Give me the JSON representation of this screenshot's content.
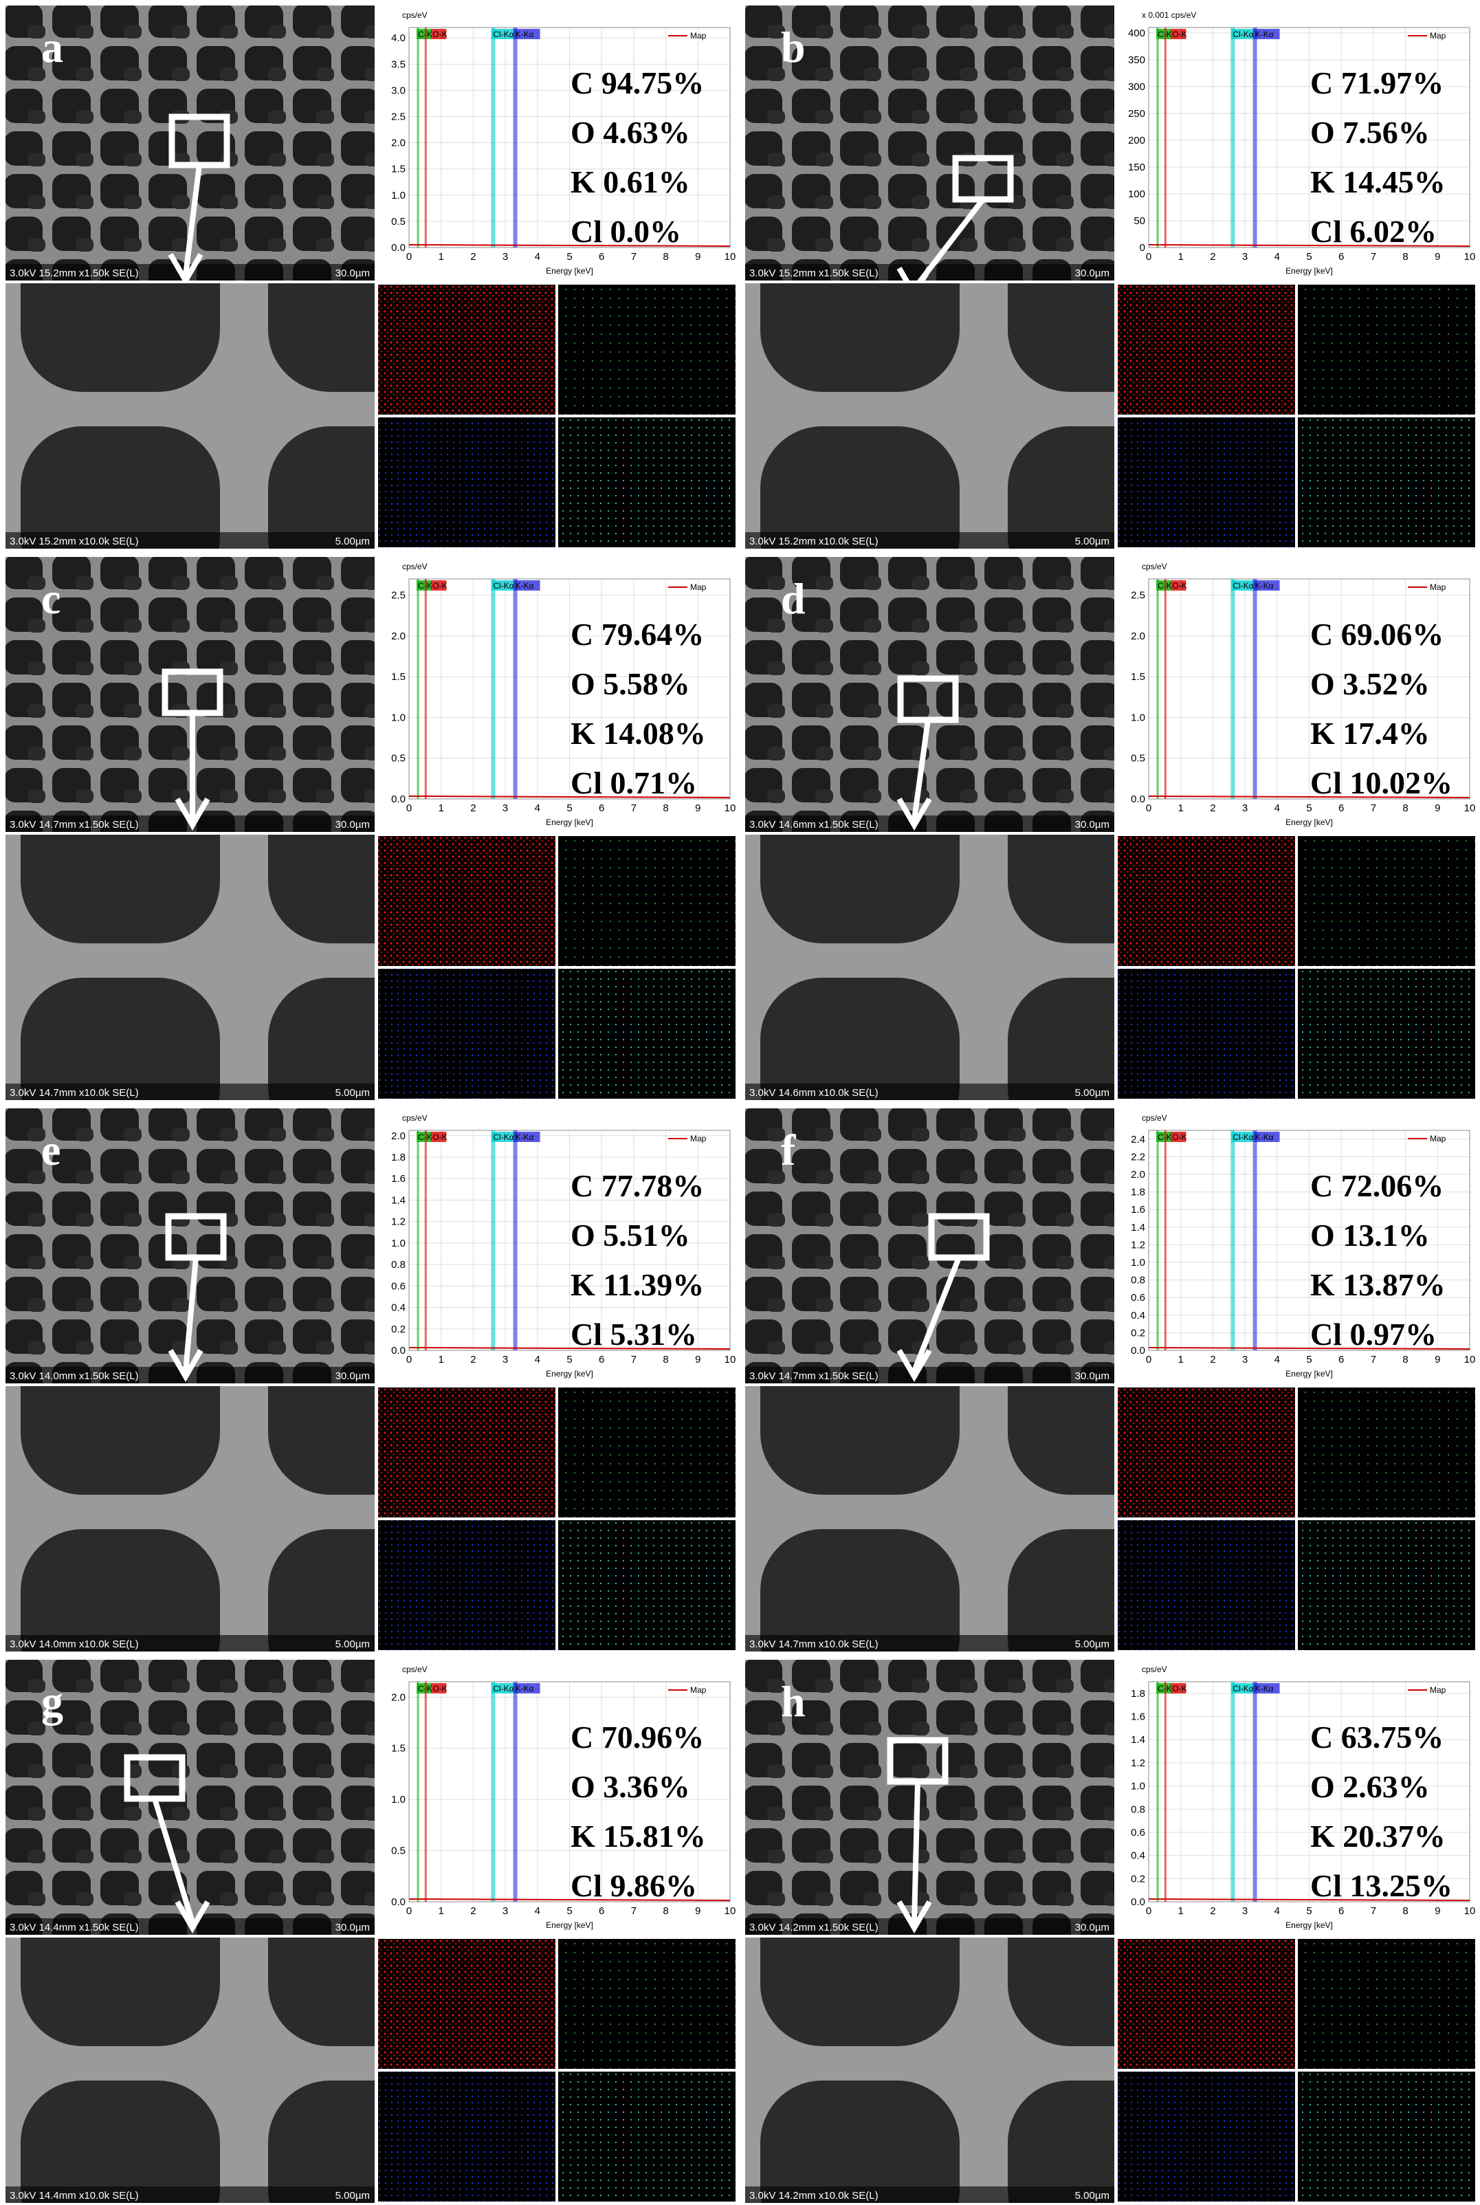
{
  "spectrum": {
    "x_label": "Energy [keV]",
    "legend": "Map",
    "xlim": [
      0,
      10
    ],
    "xticks": [
      0,
      1,
      2,
      3,
      4,
      5,
      6,
      7,
      8,
      9,
      10
    ],
    "peaks": [
      {
        "label": "C-K",
        "energy": 0.28,
        "color": "#00b000"
      },
      {
        "label": "O-K",
        "energy": 0.52,
        "color": "#e00000"
      },
      {
        "label": "Cl-Kα",
        "energy": 2.62,
        "color": "#00d0d0"
      },
      {
        "label": "K-Kα",
        "energy": 3.31,
        "color": "#3030e0"
      }
    ]
  },
  "panels": [
    {
      "label": "a",
      "composition": [
        "C 94.75%",
        "O 4.63%",
        "K 0.61%",
        "Cl 0.0%"
      ],
      "low_mag_caption": "3.0kV 15.2mm x1.50k SE(L)",
      "low_mag_scale": "30.0µm",
      "high_mag_caption": "3.0kV 15.2mm x10.0k SE(L)",
      "high_mag_scale": "5.00µm",
      "y_unit": "cps/eV",
      "ylim": [
        0,
        4.2
      ],
      "yticks": [
        {
          "value": 0,
          "label": "0.0"
        },
        0.5,
        {
          "value": 1,
          "label": "1.0"
        },
        1.5,
        {
          "value": 2,
          "label": "2.0"
        },
        2.5,
        {
          "value": 3,
          "label": "3.0"
        },
        3.5,
        {
          "value": 4,
          "label": "4.0"
        }
      ]
    },
    {
      "label": "b",
      "composition": [
        "C 71.97%",
        "O 7.56%",
        "K 14.45%",
        "Cl 6.02%"
      ],
      "low_mag_caption": "3.0kV 15.2mm x1.50k SE(L)",
      "low_mag_scale": "30.0µm",
      "high_mag_caption": "3.0kV 15.2mm x10.0k SE(L)",
      "high_mag_scale": "5.00µm",
      "y_unit": "x 0.001 cps/eV",
      "ylim": [
        0,
        410
      ],
      "yticks": [
        0,
        50,
        100,
        150,
        200,
        250,
        300,
        350,
        400
      ]
    },
    {
      "label": "c",
      "composition": [
        "C 79.64%",
        "O 5.58%",
        "K 14.08%",
        "Cl 0.71%"
      ],
      "low_mag_caption": "3.0kV 14.7mm x1.50k SE(L)",
      "low_mag_scale": "30.0µm",
      "high_mag_caption": "3.0kV 14.7mm x10.0k SE(L)",
      "high_mag_scale": "5.00µm",
      "y_unit": "cps/eV",
      "ylim": [
        0,
        2.7
      ],
      "yticks": [
        {
          "value": 0,
          "label": "0.0"
        },
        0.5,
        {
          "value": 1,
          "label": "1.0"
        },
        1.5,
        {
          "value": 2,
          "label": "2.0"
        },
        2.5
      ]
    },
    {
      "label": "d",
      "composition": [
        "C 69.06%",
        "O 3.52%",
        "K 17.4%",
        "Cl 10.02%"
      ],
      "low_mag_caption": "3.0kV 14.6mm x1.50k SE(L)",
      "low_mag_scale": "30.0µm",
      "high_mag_caption": "3.0kV 14.6mm x10.0k SE(L)",
      "high_mag_scale": "5.00µm",
      "y_unit": "cps/eV",
      "ylim": [
        0,
        2.7
      ],
      "yticks": [
        {
          "value": 0,
          "label": "0.0"
        },
        0.5,
        {
          "value": 1,
          "label": "1.0"
        },
        1.5,
        {
          "value": 2,
          "label": "2.0"
        },
        2.5
      ]
    },
    {
      "label": "e",
      "composition": [
        "C 77.78%",
        "O 5.51%",
        "K 11.39%",
        "Cl 5.31%"
      ],
      "low_mag_caption": "3.0kV 14.0mm x1.50k SE(L)",
      "low_mag_scale": "30.0µm",
      "high_mag_caption": "3.0kV 14.0mm x10.0k SE(L)",
      "high_mag_scale": "5.00µm",
      "y_unit": "cps/eV",
      "ylim": [
        0,
        2.05
      ],
      "yticks": [
        {
          "value": 0,
          "label": "0.0"
        },
        0.2,
        0.4,
        0.6,
        0.8,
        {
          "value": 1,
          "label": "1.0"
        },
        1.2,
        1.4,
        1.6,
        1.8,
        {
          "value": 2,
          "label": "2.0"
        }
      ]
    },
    {
      "label": "f",
      "composition": [
        "C 72.06%",
        "O 13.1%",
        "K 13.87%",
        "Cl 0.97%"
      ],
      "low_mag_caption": "3.0kV 14.7mm x1.50k SE(L)",
      "low_mag_scale": "30.0µm",
      "high_mag_caption": "3.0kV 14.7mm x10.0k SE(L)",
      "high_mag_scale": "5.00µm",
      "y_unit": "cps/eV",
      "ylim": [
        0,
        2.5
      ],
      "yticks": [
        {
          "value": 0,
          "label": "0.0"
        },
        0.2,
        0.4,
        0.6,
        0.8,
        {
          "value": 1,
          "label": "1.0"
        },
        1.2,
        1.4,
        1.6,
        1.8,
        {
          "value": 2,
          "label": "2.0"
        },
        2.2,
        2.4
      ]
    },
    {
      "label": "g",
      "composition": [
        "C 70.96%",
        "O 3.36%",
        "K 15.81%",
        "Cl 9.86%"
      ],
      "low_mag_caption": "3.0kV 14.4mm x1.50k SE(L)",
      "low_mag_scale": "30.0µm",
      "high_mag_caption": "3.0kV 14.4mm x10.0k SE(L)",
      "high_mag_scale": "5.00µm",
      "y_unit": "cps/eV",
      "ylim": [
        0,
        2.15
      ],
      "yticks": [
        {
          "value": 0,
          "label": "0.0"
        },
        0.5,
        {
          "value": 1,
          "label": "1.0"
        },
        1.5,
        {
          "value": 2,
          "label": "2.0"
        }
      ]
    },
    {
      "label": "h",
      "composition": [
        "C 63.75%",
        "O 2.63%",
        "K 20.37%",
        "Cl 13.25%"
      ],
      "low_mag_caption": "3.0kV 14.2mm x1.50k SE(L)",
      "low_mag_scale": "30.0µm",
      "high_mag_caption": "3.0kV 14.2mm x10.0k SE(L)",
      "high_mag_scale": "5.00µm",
      "y_unit": "cps/eV",
      "ylim": [
        0,
        1.9
      ],
      "yticks": [
        {
          "value": 0,
          "label": "0.0"
        },
        0.2,
        0.4,
        0.6,
        0.8,
        {
          "value": 1,
          "label": "1.0"
        },
        1.2,
        1.4,
        1.6,
        1.8
      ]
    }
  ]
}
